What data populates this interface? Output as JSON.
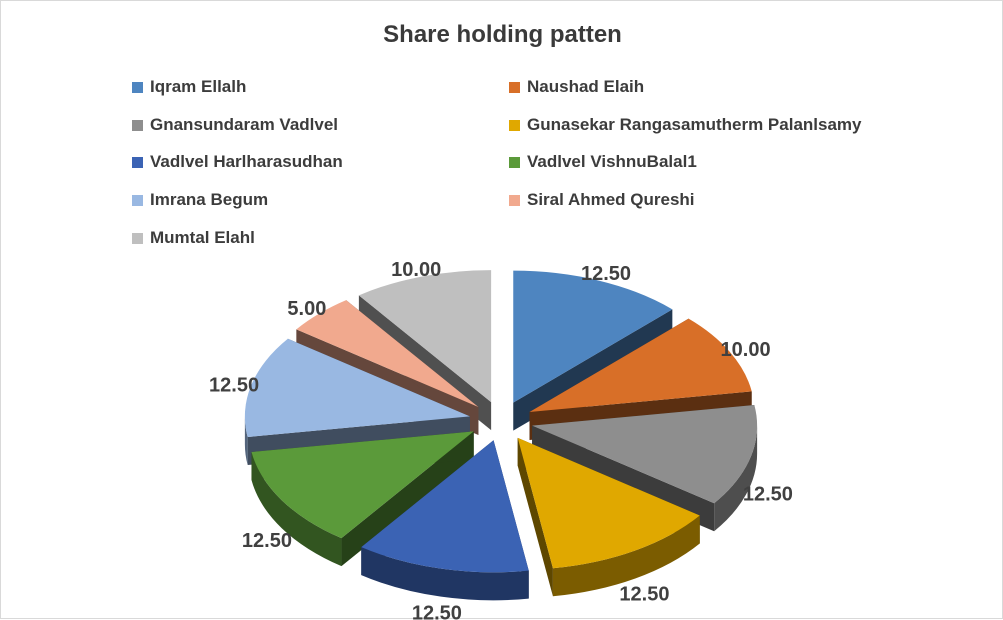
{
  "chart_data": {
    "type": "pie",
    "style": "3d-exploded",
    "title": "Share holding patten",
    "legend_position": "top",
    "series": [
      {
        "name": "Iqram Ellalh",
        "value": 12.5,
        "label": "12.50",
        "color": "#4e85c0"
      },
      {
        "name": "Naushad Elaih",
        "value": 10.0,
        "label": "10.00",
        "color": "#d86f28"
      },
      {
        "name": "Gnansundaram Vadlvel",
        "value": 12.5,
        "label": "12.50",
        "color": "#8e8e8e"
      },
      {
        "name": "Gunasekar Rangasamutherm Palanlsamy",
        "value": 12.5,
        "label": "12.50",
        "color": "#e0a800"
      },
      {
        "name": "Vadlvel Harlharasudhan",
        "value": 12.5,
        "label": "12.50",
        "color": "#3b63b4"
      },
      {
        "name": "Vadlvel VishnuBalal1",
        "value": 12.5,
        "label": "12.50",
        "color": "#5b9a3a"
      },
      {
        "name": "Imrana Begum",
        "value": 12.5,
        "label": "12.50",
        "color": "#99b8e2"
      },
      {
        "name": "Siral Ahmed Qureshi",
        "value": 5.0,
        "label": "5.00",
        "color": "#f1a98e"
      },
      {
        "name": "Mumtal Elahl",
        "value": 10.0,
        "label": "10.00",
        "color": "#bfbfbf"
      }
    ]
  }
}
